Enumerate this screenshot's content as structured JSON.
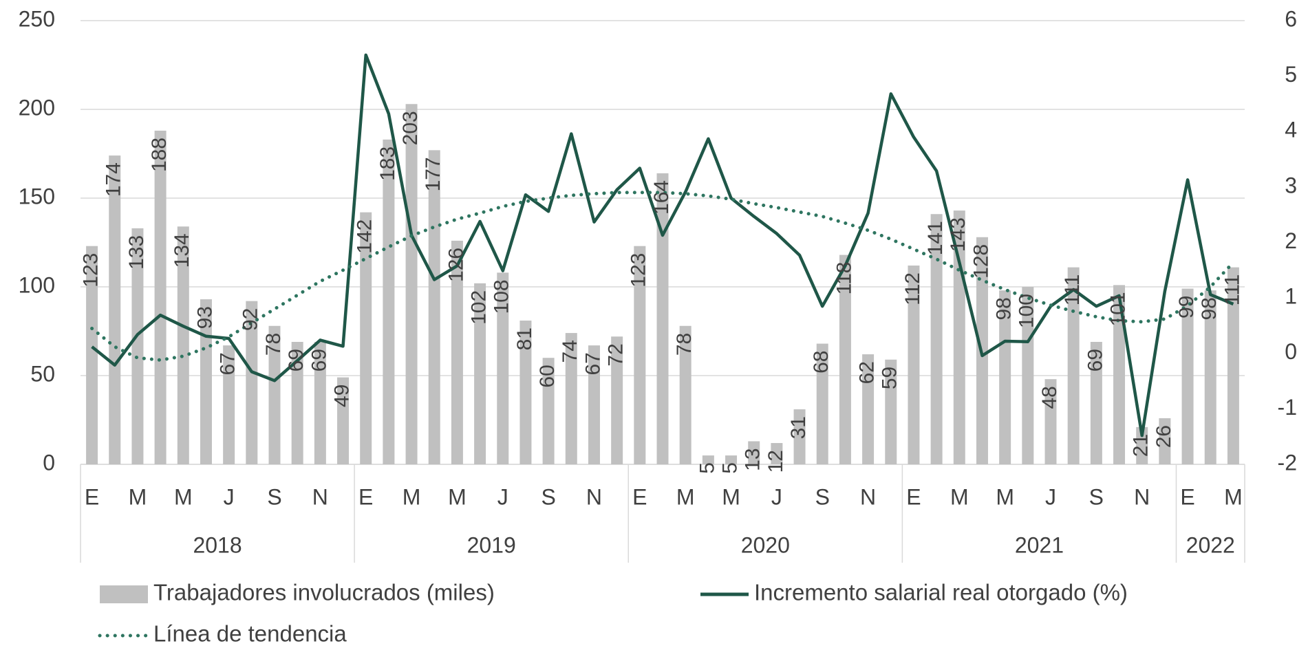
{
  "chart_data": {
    "type": "bar_line",
    "categories": [
      "E",
      null,
      "M",
      null,
      "M",
      null,
      "J",
      null,
      "S",
      null,
      "N",
      null,
      "E",
      null,
      "M",
      null,
      "M",
      null,
      "J",
      null,
      "S",
      null,
      "N",
      null,
      "E",
      null,
      "M",
      null,
      "M",
      null,
      "J",
      null,
      "S",
      null,
      "N",
      null,
      "E",
      null,
      "M",
      null,
      "M",
      null,
      "J",
      null,
      "S",
      null,
      "N",
      null,
      "E",
      null,
      "M"
    ],
    "years": [
      "2018",
      "2019",
      "2020",
      "2021",
      "2022"
    ],
    "series": [
      {
        "name": "Trabajadores involucrados (miles)",
        "type": "bar",
        "color": "#c0c0c0",
        "axis": "y",
        "values": [
          123,
          174,
          133,
          188,
          134,
          93,
          67,
          92,
          78,
          69,
          69,
          49,
          142,
          183,
          203,
          177,
          126,
          102,
          108,
          81,
          60,
          74,
          67,
          72,
          123,
          164,
          78,
          5,
          5,
          13,
          12,
          31,
          68,
          118,
          62,
          59,
          112,
          141,
          143,
          128,
          98,
          100,
          48,
          111,
          69,
          101,
          21,
          26,
          99,
          98,
          111
        ]
      },
      {
        "name": "Incremento salarial real otorgado (%)",
        "type": "line",
        "color": "#1f5748",
        "axis": "y2",
        "values": [
          0.12,
          -0.21,
          0.34,
          0.69,
          0.49,
          0.31,
          0.27,
          -0.33,
          -0.49,
          -0.13,
          0.24,
          0.13,
          5.38,
          4.32,
          2.13,
          1.33,
          1.58,
          2.38,
          1.49,
          2.86,
          2.56,
          3.96,
          2.37,
          2.95,
          3.34,
          2.13,
          2.91,
          3.87,
          2.8,
          2.47,
          2.16,
          1.77,
          0.85,
          1.58,
          2.53,
          4.68,
          3.9,
          3.29,
          1.64,
          -0.04,
          0.22,
          0.21,
          0.85,
          1.15,
          0.85,
          1.04,
          -1.48,
          1.12,
          3.13,
          1.06,
          0.89
        ]
      },
      {
        "name": "Línea de tendencia",
        "type": "line",
        "dash": "dotted",
        "color": "#2e7560",
        "axis": "y2",
        "values": [
          0.45,
          0.12,
          -0.08,
          -0.12,
          -0.05,
          0.1,
          0.3,
          0.55,
          0.8,
          1.05,
          1.3,
          1.5,
          1.71,
          1.92,
          2.12,
          2.28,
          2.42,
          2.53,
          2.65,
          2.74,
          2.8,
          2.85,
          2.88,
          2.9,
          2.9,
          2.9,
          2.88,
          2.84,
          2.78,
          2.7,
          2.63,
          2.55,
          2.47,
          2.35,
          2.22,
          2.06,
          1.88,
          1.7,
          1.5,
          1.32,
          1.15,
          1.0,
          0.87,
          0.76,
          0.66,
          0.59,
          0.57,
          0.62,
          0.86,
          1.2,
          1.64
        ]
      }
    ],
    "ylim": [
      0,
      250
    ],
    "yticks": [
      0,
      50,
      100,
      150,
      200,
      250
    ],
    "y2lim": [
      -2,
      6
    ],
    "y2ticks": [
      -2,
      -1,
      0,
      1,
      2,
      3,
      4,
      5,
      6
    ],
    "grid": true
  }
}
